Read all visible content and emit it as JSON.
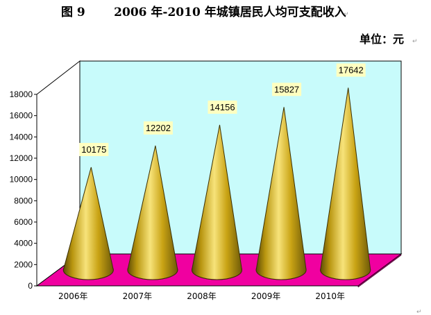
{
  "chart_data": {
    "type": "bar",
    "title": "图 9       2006 年-2010 年城镇居民人均可支配收入",
    "unit_label": "单位：元",
    "categories": [
      "2006年",
      "2007年",
      "2008年",
      "2009年",
      "2010年"
    ],
    "values": [
      10175,
      12202,
      14156,
      15827,
      17642
    ],
    "data_labels": [
      "10175",
      "12202",
      "14156",
      "15827",
      "17642"
    ],
    "ylim": [
      0,
      18000
    ],
    "yticks": [
      "0",
      "2000",
      "4000",
      "6000",
      "8000",
      "10000",
      "12000",
      "14000",
      "16000",
      "18000"
    ],
    "grid": false,
    "legend": "none",
    "colors": {
      "wall": "#c8fbfb",
      "floor": "#f000a0",
      "cone_light": "#f7e37a",
      "cone_mid": "#c9a314",
      "cone_dark": "#6e5a08",
      "label_bg": "#ffffc0"
    }
  }
}
